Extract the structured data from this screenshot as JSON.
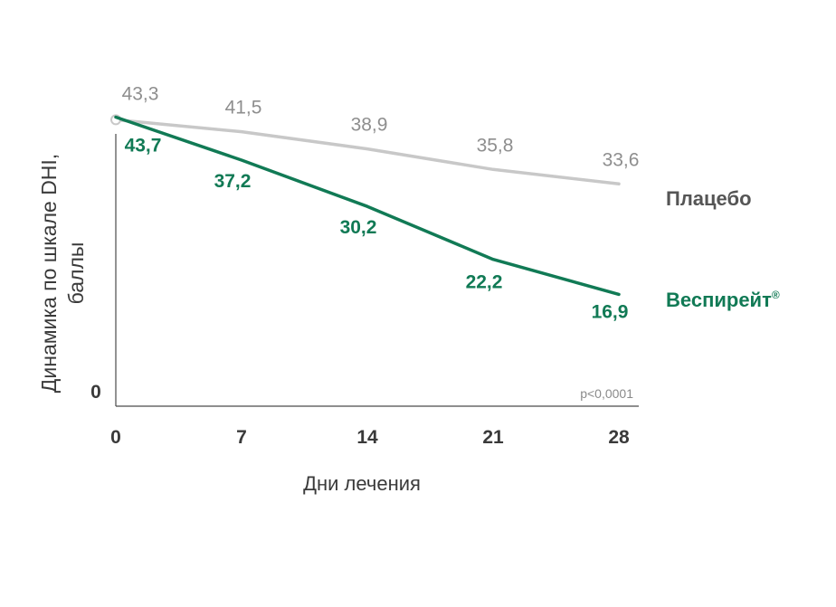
{
  "chart_data": {
    "type": "line",
    "x": [
      0,
      7,
      14,
      21,
      28
    ],
    "xlabel": "Дни лечения",
    "ylabel": "Динамика по шкале DHI, баллы",
    "y_tick_label": "0",
    "ylim": [
      0,
      45
    ],
    "series": [
      {
        "name": "Плацебо",
        "color": "#c8c8c8",
        "label_color": "#8e8e8e",
        "values": [
          43.3,
          41.5,
          38.9,
          35.8,
          33.6
        ],
        "value_labels": [
          "43,3",
          "41,5",
          "38,9",
          "35,8",
          "33,6"
        ]
      },
      {
        "name": "Веспирейт",
        "name_mark": "®",
        "color": "#117a55",
        "label_color": "#117a55",
        "values": [
          43.7,
          37.2,
          30.2,
          22.2,
          16.9
        ],
        "value_labels": [
          "43,7",
          "37,2",
          "30,2",
          "22,2",
          "16,9"
        ]
      }
    ],
    "annotation": "p<0,0001",
    "grid": false,
    "legend": "right"
  }
}
